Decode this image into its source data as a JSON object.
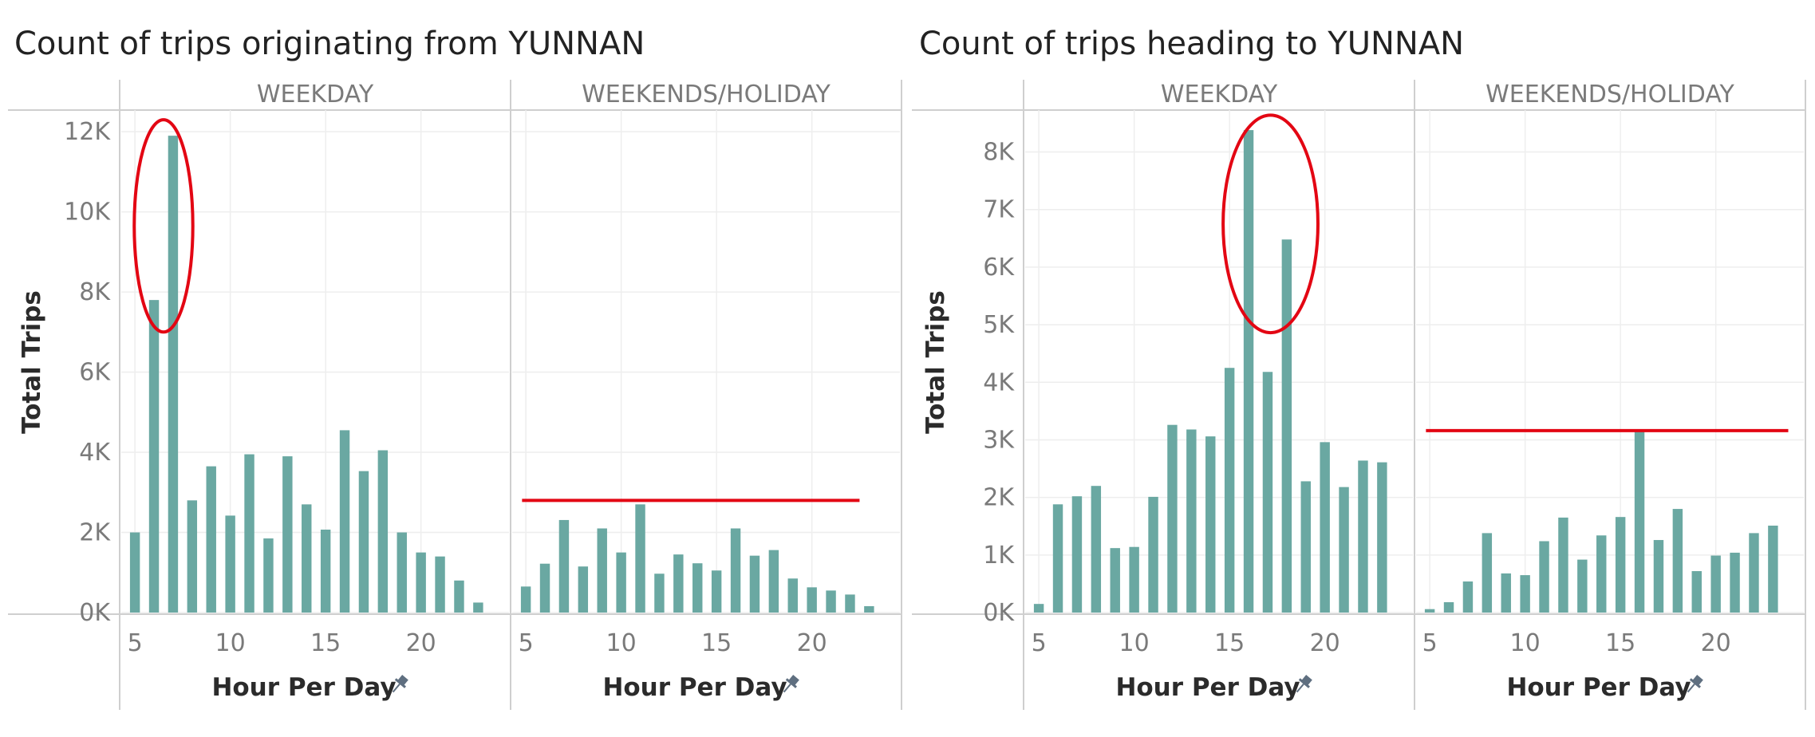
{
  "colors": {
    "bar": "#6aa8a2",
    "annotation": "#e30613",
    "frame": "#cfcfcf",
    "grid": "#eeeeee",
    "pin": "#5f6f80"
  },
  "chart_data": [
    {
      "type": "bar",
      "title": "Count of trips originating from YUNNAN",
      "ylabel": "Total Trips",
      "xlabel": "Hour Per Day",
      "x_icon": "pin-icon",
      "ylim": [
        0,
        12500
      ],
      "yticks": [
        0,
        2000,
        4000,
        6000,
        8000,
        10000,
        12000
      ],
      "ytick_labels": [
        "0K",
        "2K",
        "4K",
        "6K",
        "8K",
        "10K",
        "12K"
      ],
      "xticks": [
        5,
        10,
        15,
        20
      ],
      "xtick_labels": [
        "5",
        "10",
        "15",
        "20"
      ],
      "xlim": [
        4.2,
        24.7
      ],
      "grid": true,
      "facets": [
        {
          "label": "WEEKDAY",
          "x": [
            5,
            6,
            7,
            8,
            9,
            10,
            11,
            12,
            13,
            14,
            15,
            16,
            17,
            18,
            19,
            20,
            21,
            22,
            23
          ],
          "values": [
            2000,
            7800,
            11900,
            2800,
            3650,
            2420,
            3950,
            1850,
            3900,
            2700,
            2070,
            4550,
            3530,
            4050,
            2000,
            1500,
            1400,
            800,
            250
          ],
          "annotation": {
            "type": "ellipse",
            "x_range": [
              5.8,
              7.2
            ],
            "y_range": [
              7200,
              12100
            ]
          }
        },
        {
          "label": "WEEKENDS/HOLIDAY",
          "x": [
            5,
            6,
            7,
            8,
            9,
            10,
            11,
            12,
            13,
            14,
            15,
            16,
            17,
            18,
            19,
            20,
            21,
            22,
            23
          ],
          "values": [
            650,
            1220,
            2310,
            1150,
            2100,
            1500,
            2700,
            970,
            1450,
            1230,
            1050,
            2100,
            1420,
            1560,
            850,
            630,
            550,
            450,
            160
          ],
          "annotation": {
            "type": "hline",
            "y": 2800,
            "x_range": [
              4.8,
              22.5
            ]
          }
        }
      ]
    },
    {
      "type": "bar",
      "title": "Count of trips heading to YUNNAN",
      "ylabel": "Total Trips",
      "xlabel": "Hour Per Day",
      "x_icon": "pin-icon",
      "ylim": [
        0,
        8700
      ],
      "yticks": [
        0,
        1000,
        2000,
        3000,
        4000,
        5000,
        6000,
        7000,
        8000
      ],
      "ytick_labels": [
        "0K",
        "1K",
        "2K",
        "3K",
        "4K",
        "5K",
        "6K",
        "7K",
        "8K"
      ],
      "xticks": [
        5,
        10,
        15,
        20
      ],
      "xtick_labels": [
        "5",
        "10",
        "15",
        "20"
      ],
      "xlim": [
        4.2,
        24.7
      ],
      "grid": true,
      "facets": [
        {
          "label": "WEEKDAY",
          "x": [
            5,
            6,
            7,
            8,
            9,
            10,
            11,
            12,
            13,
            14,
            15,
            16,
            17,
            18,
            19,
            20,
            21,
            22,
            23
          ],
          "values": [
            150,
            1880,
            2020,
            2200,
            1120,
            1140,
            2010,
            3260,
            3180,
            3060,
            4250,
            8380,
            4180,
            6480,
            2280,
            2960,
            2180,
            2640,
            2610
          ],
          "annotation": {
            "type": "ellipse",
            "x_range": [
              15.5,
              18.8
            ],
            "y_range": [
              5000,
              8500
            ]
          }
        },
        {
          "label": "WEEKENDS/HOLIDAY",
          "x": [
            5,
            6,
            7,
            8,
            9,
            10,
            11,
            12,
            13,
            14,
            15,
            16,
            17,
            18,
            19,
            20,
            21,
            22,
            23
          ],
          "values": [
            60,
            180,
            540,
            1380,
            680,
            650,
            1240,
            1650,
            920,
            1340,
            1660,
            3150,
            1260,
            1800,
            720,
            990,
            1040,
            1380,
            1510
          ],
          "annotation": {
            "type": "hline",
            "y": 3160,
            "x_range": [
              4.8,
              23.8
            ]
          }
        }
      ]
    }
  ]
}
